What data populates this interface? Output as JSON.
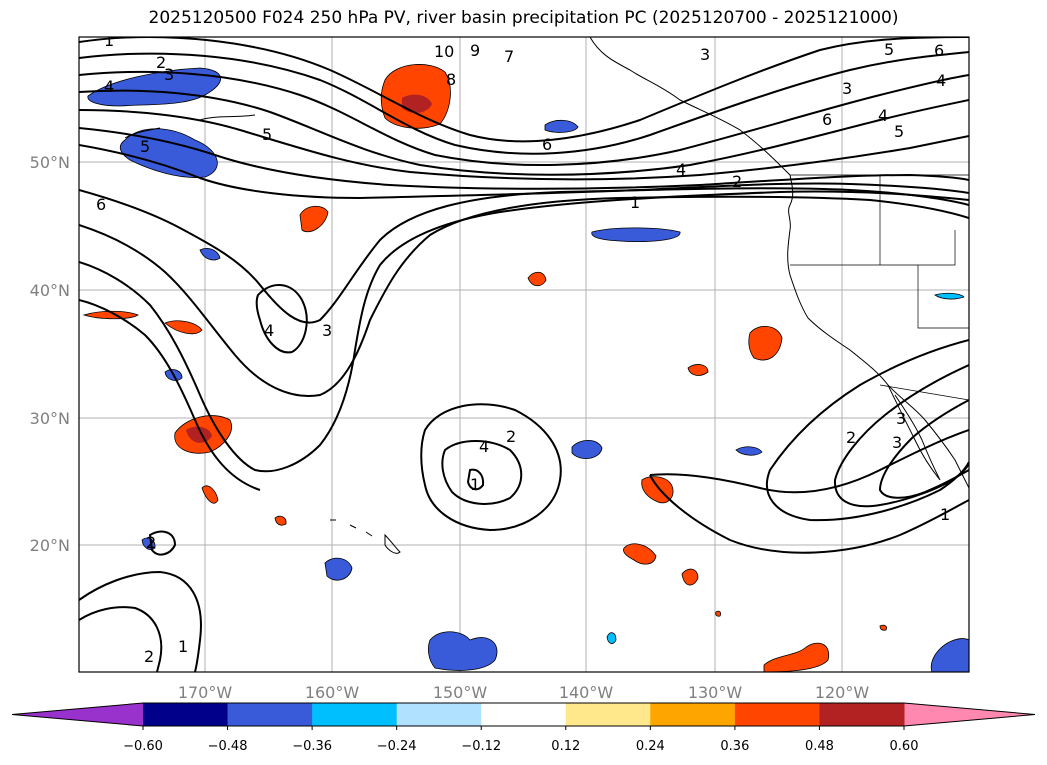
{
  "title": "2025120500 F024 250 hPa PV, river basin precipitation PC (2025120700 - 2025121000)",
  "map": {
    "lon_labels": [
      "170°W",
      "160°W",
      "150°W",
      "140°W",
      "130°W",
      "120°W"
    ],
    "lat_labels": [
      "50°N",
      "40°N",
      "30°N",
      "20°N"
    ],
    "contour_labels": [
      "1",
      "2",
      "3",
      "4",
      "5",
      "6",
      "7",
      "8",
      "9",
      "10",
      "3",
      "5",
      "6",
      "4",
      "3",
      "6",
      "4",
      "5",
      "5",
      "6",
      "4",
      "2",
      "1",
      "4",
      "3",
      "4",
      "2",
      "1",
      "3",
      "2",
      "1",
      "3",
      "2",
      "2",
      "1"
    ],
    "precip_color_positive": "#ff4500",
    "precip_color_negative": "#3a5bd9"
  },
  "colorbar": {
    "colors": [
      "#9932cc",
      "#00008b",
      "#3a5bd9",
      "#00bfff",
      "#b0e2ff",
      "#ffffff",
      "#ffe88c",
      "#ffa500",
      "#ff4500",
      "#b22222",
      "#ff88b0"
    ],
    "tick_labels": [
      "−0.60",
      "−0.48",
      "−0.36",
      "−0.24",
      "−0.12",
      "0.12",
      "0.24",
      "0.36",
      "0.48",
      "0.60"
    ]
  }
}
